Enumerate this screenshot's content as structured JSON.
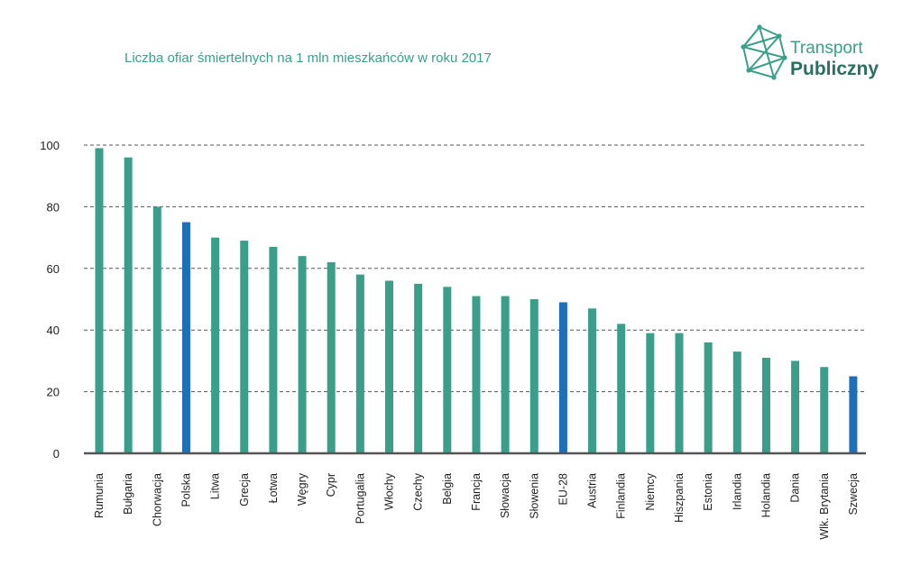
{
  "header": {
    "title": "Liczba ofiar śmiertelnych na 1 mln mieszkańców w roku 2017"
  },
  "logo": {
    "line1": "Transport",
    "line2": "Publiczny",
    "icon": "network-polygon-icon"
  },
  "colors": {
    "default_bar": "#3a9e89",
    "highlight_bar": "#1c6fb8",
    "title": "#3aa08a",
    "logo_line1": "#3aa08a",
    "logo_line2": "#2b6e62",
    "gridline": "#555555",
    "baseline": "#555555"
  },
  "chart_data": {
    "type": "bar",
    "title": "Liczba ofiar śmiertelnych na 1 mln mieszkańców w roku 2017",
    "xlabel": "",
    "ylabel": "",
    "ylim": [
      0,
      100
    ],
    "yticks": [
      0,
      20,
      40,
      60,
      80,
      100
    ],
    "grid": "horizontal dashed",
    "legend": "none",
    "categories": [
      "Rumunia",
      "Bułgaria",
      "Chorwacja",
      "Polska",
      "Litwa",
      "Grecja",
      "Łotwa",
      "Węgry",
      "Cypr",
      "Portugalia",
      "Włochy",
      "Czechy",
      "Belgia",
      "Francja",
      "Słowacja",
      "Słowenia",
      "EU-28",
      "Austria",
      "Finlandia",
      "Niemcy",
      "Hiszpania",
      "Estonia",
      "Irlandia",
      "Holandia",
      "Dania",
      "Wlk. Brytania",
      "Szwecja"
    ],
    "values": [
      99,
      96,
      80,
      75,
      70,
      69,
      67,
      64,
      62,
      58,
      56,
      55,
      54,
      51,
      51,
      50,
      49,
      47,
      42,
      39,
      39,
      36,
      33,
      31,
      30,
      28,
      25
    ],
    "highlighted": [
      "Polska",
      "EU-28",
      "Szwecja"
    ]
  }
}
